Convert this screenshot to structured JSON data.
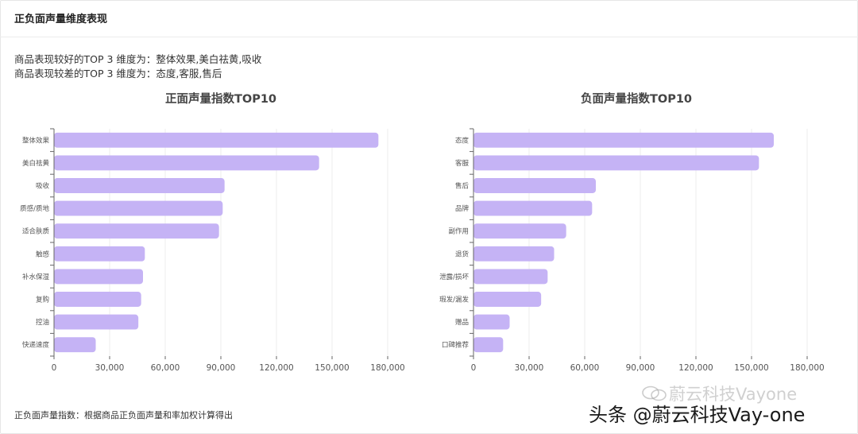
{
  "header": {
    "title": "正负面声量维度表现"
  },
  "summary": {
    "line1": "商品表现较好的TOP 3 维度为：整体效果,美白祛黄,吸收",
    "line2": "商品表现较差的TOP 3 维度为：态度,客服,售后"
  },
  "footnote": "正负面声量指数：根据商品正负面声量和率加权计算得出",
  "watermark": {
    "faded": "蔚云科技Vayone",
    "main": "头条 @蔚云科技Vay-one",
    "icon": "chat-bubbles-icon"
  },
  "colors": {
    "bar": "#c5b3f5",
    "axis": "#666666",
    "grid": "#ececec",
    "text": "#555555"
  },
  "chart_data": [
    {
      "type": "bar",
      "orientation": "horizontal",
      "title": "正面声量指数TOP10",
      "categories": [
        "整体效果",
        "美白祛黄",
        "吸收",
        "质感/质地",
        "适合肤质",
        "触感",
        "补水保湿",
        "复购",
        "控油",
        "快递速度"
      ],
      "values": [
        175000,
        143000,
        92000,
        91000,
        89000,
        49000,
        48000,
        47000,
        45500,
        22500
      ],
      "xlim": [
        0,
        180000
      ],
      "xticks": [
        "0",
        "30,000",
        "60,000",
        "90,000",
        "120,000",
        "150,000",
        "180,000"
      ],
      "xtick_values": [
        0,
        30000,
        60000,
        90000,
        120000,
        150000,
        180000
      ],
      "grid": true,
      "legend": "none"
    },
    {
      "type": "bar",
      "orientation": "horizontal",
      "title": "负面声量指数TOP10",
      "categories": [
        "态度",
        "客服",
        "售后",
        "品牌",
        "副作用",
        "退货",
        "泄露/损坏",
        "瑕发/漏发",
        "赠品",
        "口碑推荐"
      ],
      "values": [
        162000,
        154000,
        66000,
        64000,
        50000,
        43500,
        40000,
        36500,
        19500,
        16000
      ],
      "xlim": [
        0,
        180000
      ],
      "xticks": [
        "0",
        "30,000",
        "60,000",
        "90,000",
        "120,000",
        "150,000",
        "180,000"
      ],
      "xtick_values": [
        0,
        30000,
        60000,
        90000,
        120000,
        150000,
        180000
      ],
      "grid": true,
      "legend": "none"
    }
  ]
}
